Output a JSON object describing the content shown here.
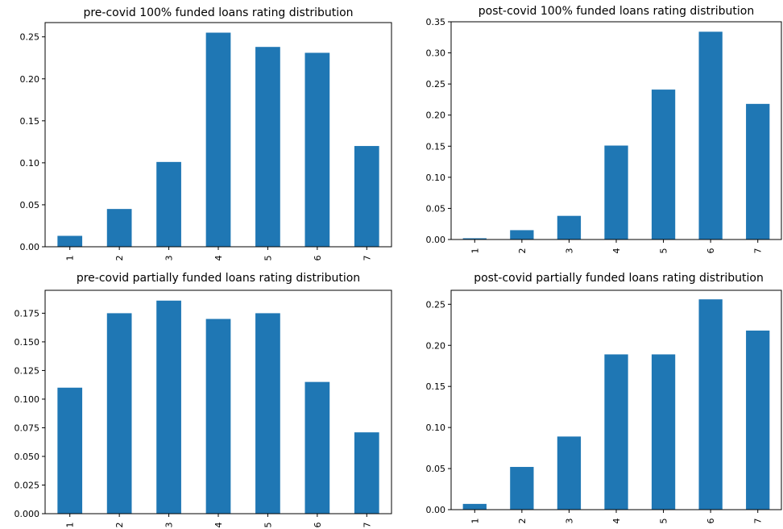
{
  "chart_data": [
    {
      "type": "bar",
      "title": "pre-covid 100% funded loans rating distribution",
      "categories": [
        "1",
        "2",
        "3",
        "4",
        "5",
        "6",
        "7"
      ],
      "values": [
        0.013,
        0.045,
        0.101,
        0.255,
        0.238,
        0.231,
        0.12
      ],
      "ylim": [
        0,
        0.267
      ],
      "yticks": [
        "0.00",
        "0.05",
        "0.10",
        "0.15",
        "0.20",
        "0.25"
      ],
      "xlabel": "",
      "ylabel": "",
      "color": "#1f77b4",
      "grid": false
    },
    {
      "type": "bar",
      "title": "post-covid 100% funded loans rating distribution",
      "categories": [
        "1",
        "2",
        "3",
        "4",
        "5",
        "6",
        "7"
      ],
      "values": [
        0.002,
        0.015,
        0.038,
        0.151,
        0.241,
        0.334,
        0.218
      ],
      "ylim": [
        0,
        0.35
      ],
      "yticks": [
        "0.00",
        "0.05",
        "0.10",
        "0.15",
        "0.20",
        "0.25",
        "0.30",
        "0.35"
      ],
      "xlabel": "",
      "ylabel": "",
      "color": "#1f77b4",
      "grid": false
    },
    {
      "type": "bar",
      "title": "pre-covid partially funded loans rating distribution",
      "categories": [
        "1",
        "2",
        "3",
        "4",
        "5",
        "6",
        "7"
      ],
      "values": [
        0.11,
        0.175,
        0.186,
        0.17,
        0.175,
        0.115,
        0.071
      ],
      "ylim": [
        0,
        0.195
      ],
      "yticks": [
        "0.000",
        "0.025",
        "0.050",
        "0.075",
        "0.100",
        "0.125",
        "0.150",
        "0.175"
      ],
      "xlabel": "",
      "ylabel": "",
      "color": "#1f77b4",
      "grid": false
    },
    {
      "type": "bar",
      "title": "post-covid partially funded loans rating distribution",
      "categories": [
        "1",
        "2",
        "3",
        "4",
        "5",
        "6",
        "7"
      ],
      "values": [
        0.007,
        0.052,
        0.089,
        0.189,
        0.189,
        0.256,
        0.218
      ],
      "ylim": [
        0,
        0.267
      ],
      "yticks": [
        "0.00",
        "0.05",
        "0.10",
        "0.15",
        "0.20",
        "0.25"
      ],
      "xlabel": "",
      "ylabel": "",
      "color": "#1f77b4",
      "grid": false
    }
  ]
}
